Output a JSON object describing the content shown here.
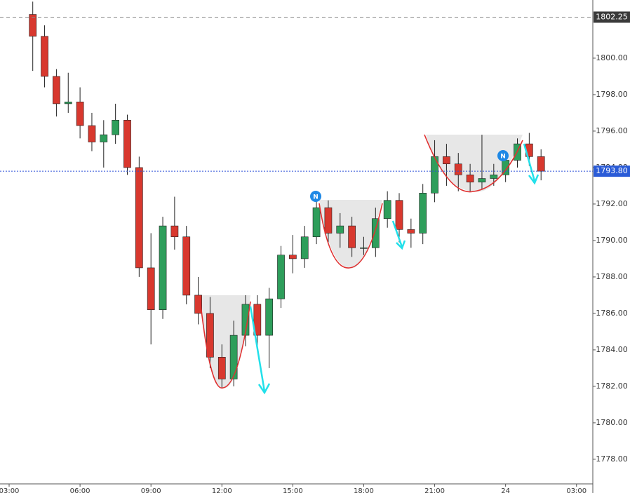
{
  "chart_data": {
    "type": "candlestick",
    "x": [
      4.0,
      4.5,
      5.0,
      5.5,
      6.0,
      6.5,
      7.0,
      7.5,
      8.0,
      8.5,
      9.0,
      9.5,
      10.0,
      10.5,
      11.0,
      11.5,
      12.0,
      12.5,
      13.0,
      13.5,
      14.0,
      14.5,
      15.0,
      15.5,
      16.0,
      16.5,
      17.0,
      17.5,
      18.0,
      18.5,
      19.0,
      19.5,
      20.0,
      20.5,
      21.0,
      21.5,
      22.0,
      22.5,
      23.0,
      23.5,
      24.0,
      24.5,
      25.0,
      25.5
    ],
    "open": [
      1802.4,
      1801.2,
      1799.0,
      1797.5,
      1797.6,
      1796.3,
      1795.4,
      1795.8,
      1796.6,
      1794.0,
      1788.5,
      1786.2,
      1790.8,
      1790.2,
      1787.0,
      1786.0,
      1783.6,
      1782.4,
      1784.8,
      1786.5,
      1784.8,
      1786.8,
      1789.2,
      1789.0,
      1790.2,
      1791.8,
      1790.4,
      1790.8,
      1789.6,
      1789.6,
      1791.2,
      1792.2,
      1790.6,
      1790.4,
      1792.6,
      1794.6,
      1794.2,
      1793.6,
      1793.2,
      1793.4,
      1793.6,
      1794.4,
      1795.3,
      1794.6
    ],
    "high": [
      1803.1,
      1801.8,
      1799.4,
      1799.2,
      1798.4,
      1797.0,
      1796.6,
      1797.5,
      1796.9,
      1794.6,
      1790.4,
      1791.3,
      1792.4,
      1790.8,
      1788.0,
      1786.9,
      1784.3,
      1785.6,
      1787.0,
      1787.0,
      1787.4,
      1789.7,
      1790.3,
      1790.8,
      1792.3,
      1792.2,
      1791.5,
      1791.3,
      1790.2,
      1791.8,
      1792.7,
      1792.6,
      1791.2,
      1793.1,
      1795.5,
      1795.3,
      1794.8,
      1794.2,
      1795.8,
      1794.2,
      1794.9,
      1795.6,
      1795.9,
      1795.0
    ],
    "low": [
      1799.3,
      1798.4,
      1796.8,
      1797.0,
      1795.6,
      1794.9,
      1794.0,
      1795.3,
      1793.6,
      1788.0,
      1784.3,
      1785.7,
      1789.5,
      1786.5,
      1785.4,
      1783.0,
      1781.9,
      1782.0,
      1784.2,
      1784.2,
      1783.0,
      1786.3,
      1788.2,
      1788.5,
      1789.8,
      1789.9,
      1789.6,
      1789.1,
      1789.2,
      1789.1,
      1790.7,
      1789.9,
      1789.6,
      1789.8,
      1792.1,
      1793.0,
      1792.7,
      1792.7,
      1792.8,
      1793.0,
      1793.2,
      1794.0,
      1794.1,
      1793.3
    ],
    "close": [
      1801.2,
      1799.0,
      1797.5,
      1797.6,
      1796.3,
      1795.4,
      1795.8,
      1796.6,
      1794.0,
      1788.5,
      1786.2,
      1790.8,
      1790.2,
      1787.0,
      1786.0,
      1783.6,
      1782.4,
      1784.8,
      1786.5,
      1784.8,
      1786.8,
      1789.2,
      1789.0,
      1790.2,
      1791.8,
      1790.4,
      1790.8,
      1789.6,
      1789.6,
      1791.2,
      1792.2,
      1790.6,
      1790.4,
      1792.6,
      1794.6,
      1794.2,
      1793.6,
      1793.2,
      1793.4,
      1793.6,
      1794.4,
      1795.3,
      1794.6,
      1793.8
    ],
    "up_color": "#2e9e5b",
    "down_color": "#d8382e",
    "xlim": [
      2.614,
      27.69
    ],
    "xticks": [
      {
        "value": 3,
        "label": "03:00"
      },
      {
        "value": 6,
        "label": "06:00"
      },
      {
        "value": 9,
        "label": "09:00"
      },
      {
        "value": 12,
        "label": "12:00"
      },
      {
        "value": 15,
        "label": "15:00"
      },
      {
        "value": 18,
        "label": "18:00"
      },
      {
        "value": 21,
        "label": "21:00"
      },
      24,
      {
        "value": 27,
        "label": "03:00"
      }
    ],
    "ylim": [
      1776.65,
      1803.19
    ],
    "yticks": [
      {
        "value": 1778,
        "label": "1778.00"
      },
      {
        "value": 1780,
        "label": "1780.00"
      },
      {
        "value": 1782,
        "label": "1782.00"
      },
      {
        "value": 1784,
        "label": "1784.00"
      },
      {
        "value": 1786,
        "label": "1786.00"
      },
      {
        "value": 1788,
        "label": "1788.00"
      },
      {
        "value": 1790,
        "label": "1790.00"
      },
      {
        "value": 1792,
        "label": "1792.00"
      },
      {
        "value": 1794,
        "label": "1794.00"
      },
      {
        "value": 1796,
        "label": "1796.00"
      },
      {
        "value": 1798,
        "label": "1798.00"
      },
      {
        "value": 1800,
        "label": "1800.00"
      }
    ],
    "reference_lines": [
      {
        "value": 1802.25,
        "color": "#888888",
        "box_color": "#3a3a3a"
      },
      {
        "value": 1793.8,
        "label": "1793.80",
        "color": "#2a4fd6",
        "box_color": "#2a5bd7"
      }
    ],
    "annotations": [
      "N",
      "N"
    ]
  }
}
